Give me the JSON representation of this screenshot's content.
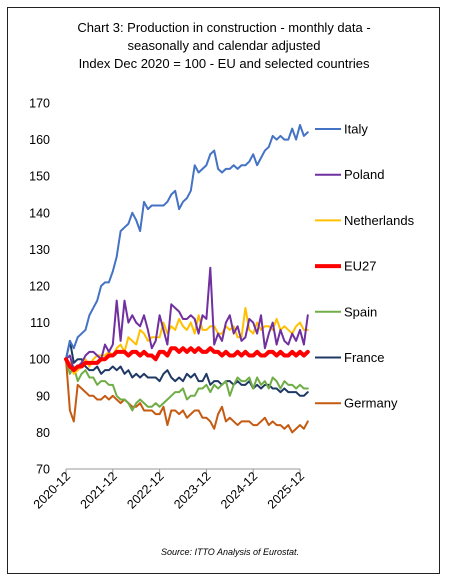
{
  "chart_data": {
    "type": "line",
    "title": [
      "Chart 3: Production in construction - monthly data -",
      "seasonally and calendar adjusted",
      "Index Dec 2020 = 100 - EU and selected countries"
    ],
    "source": "Source: ITTO Analysis of Eurostat.",
    "xlabel": "",
    "ylabel": "",
    "ylim": [
      70,
      170
    ],
    "yticks": [
      70,
      80,
      90,
      100,
      110,
      120,
      130,
      140,
      150,
      160,
      170
    ],
    "xlim": [
      "2020-12",
      "2025-12"
    ],
    "xticks": [
      "2020-12",
      "2021-12",
      "2022-12",
      "2023-12",
      "2024-12",
      "2025-12"
    ],
    "grid": false,
    "legend": "right",
    "series": [
      {
        "name": "Italy",
        "color": "#4472C4",
        "start": "2020-12",
        "values": [
          100,
          105,
          103,
          106,
          107,
          108,
          112,
          114,
          116,
          120,
          121,
          121,
          124,
          128,
          135,
          136,
          137,
          140,
          138,
          135,
          143,
          141,
          142,
          142,
          142,
          142,
          143,
          145,
          146,
          141,
          143,
          144,
          146,
          153,
          151,
          152,
          153,
          156,
          157,
          152,
          151,
          152,
          152,
          153,
          152,
          153,
          153,
          154,
          156,
          153,
          155,
          157,
          158,
          161,
          160,
          161,
          160,
          160,
          163,
          160,
          164,
          161,
          162
        ]
      },
      {
        "name": "Poland",
        "color": "#7030A0",
        "start": "2020-12",
        "values": [
          100,
          101,
          97,
          98,
          99,
          101,
          102,
          102,
          101,
          100,
          104,
          102,
          104,
          116,
          105,
          116,
          110,
          112,
          110,
          109,
          112,
          108,
          103,
          105,
          112,
          108,
          104,
          115,
          114,
          113,
          111,
          111,
          112,
          111,
          107,
          112,
          111,
          125,
          104,
          107,
          105,
          110,
          112,
          107,
          109,
          105,
          106,
          111,
          110,
          107,
          112,
          103,
          107,
          110,
          104,
          108,
          105,
          104,
          107,
          105,
          108,
          104,
          112
        ]
      },
      {
        "name": "Netherlands",
        "color": "#FFC000",
        "start": "2020-12",
        "values": [
          100,
          99,
          96,
          97,
          98,
          100,
          98,
          100,
          101,
          101,
          101,
          102,
          101,
          103,
          104,
          102,
          106,
          105,
          104,
          108,
          107,
          105,
          106,
          106,
          106,
          110,
          107,
          109,
          108,
          111,
          109,
          108,
          110,
          107,
          112,
          108,
          108,
          109,
          109,
          107,
          107,
          109,
          108,
          109,
          106,
          106,
          114,
          108,
          107,
          110,
          108,
          109,
          109,
          108,
          111,
          108,
          109,
          108,
          107,
          109,
          110,
          108,
          108
        ]
      },
      {
        "name": "EU27",
        "color": "#FF0000",
        "start": "2020-12",
        "values": [
          100,
          98,
          97,
          98,
          98,
          99,
          99,
          99,
          99,
          100,
          100,
          101,
          101,
          102,
          102,
          102,
          101,
          102,
          102,
          101,
          102,
          101,
          101,
          100,
          102,
          102,
          101,
          103,
          103,
          102,
          103,
          102,
          103,
          102,
          103,
          102,
          102,
          103,
          102,
          102,
          101,
          102,
          101,
          101,
          102,
          101,
          102,
          101,
          101,
          102,
          101,
          101,
          102,
          102,
          101,
          102,
          101,
          101,
          102,
          101,
          102,
          101,
          102
        ]
      },
      {
        "name": "Spain",
        "color": "#70AD47",
        "start": "2020-12",
        "values": [
          100,
          96,
          98,
          94,
          96,
          97,
          95,
          95,
          93,
          94,
          94,
          93,
          93,
          90,
          89,
          89,
          88,
          86,
          88,
          89,
          88,
          87,
          87,
          88,
          87,
          88,
          89,
          90,
          91,
          91,
          92,
          89,
          90,
          90,
          92,
          92,
          93,
          91,
          93,
          92,
          93,
          94,
          90,
          93,
          95,
          94,
          94,
          95,
          92,
          95,
          93,
          94,
          92,
          95,
          94,
          92,
          94,
          93,
          93,
          92,
          93,
          92,
          92
        ]
      },
      {
        "name": "France",
        "color": "#1F3864",
        "start": "2020-12",
        "values": [
          100,
          105,
          99,
          100,
          100,
          98,
          97,
          97,
          98,
          96,
          97,
          97,
          98,
          97,
          98,
          96,
          97,
          95,
          96,
          95,
          96,
          95,
          95,
          95,
          94,
          96,
          97,
          95,
          94,
          95,
          94,
          96,
          95,
          96,
          94,
          94,
          96,
          93,
          94,
          94,
          93,
          94,
          94,
          93,
          94,
          93,
          93,
          94,
          92,
          93,
          92,
          93,
          93,
          92,
          92,
          91,
          92,
          91,
          91,
          91,
          90,
          90,
          91
        ]
      },
      {
        "name": "Germany",
        "color": "#C55A11",
        "start": "2020-12",
        "values": [
          100,
          86,
          83,
          93,
          92,
          91,
          90,
          90,
          89,
          89,
          90,
          89,
          90,
          89,
          88,
          89,
          88,
          87,
          87,
          88,
          86,
          86,
          86,
          85,
          85,
          87,
          82,
          86,
          86,
          85,
          86,
          84,
          85,
          86,
          86,
          84,
          84,
          83,
          81,
          85,
          87,
          83,
          84,
          83,
          82,
          83,
          83,
          83,
          82,
          82,
          83,
          84,
          82,
          83,
          82,
          82,
          81,
          82,
          80,
          81,
          82,
          81,
          83
        ]
      }
    ]
  }
}
